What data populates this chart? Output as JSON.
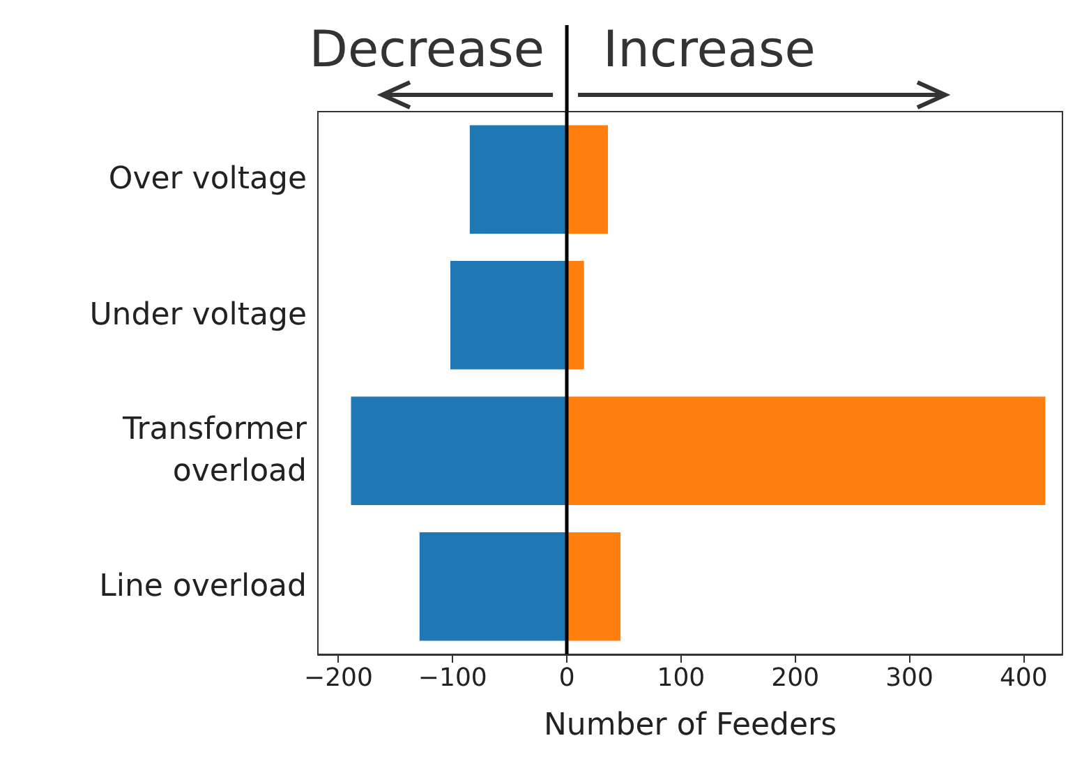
{
  "chart_data": {
    "type": "bar",
    "orientation": "horizontal",
    "stacked": true,
    "xlabel": "Number of Feeders",
    "categories": [
      "Over voltage",
      "Under voltage",
      "Transformer\noverload",
      "Line overload"
    ],
    "series": [
      {
        "color": "#1f77b4",
        "values": [
          -85,
          -102,
          -189,
          -129
        ]
      },
      {
        "color": "#ff7f0e",
        "values": [
          36,
          15,
          419,
          47
        ]
      }
    ],
    "xlim": [
      -218,
      434
    ],
    "xticks": [
      -200,
      -100,
      0,
      100,
      200,
      300,
      400
    ],
    "grid": false,
    "ref_lines": [
      {
        "axis": "x",
        "value": 0,
        "color": "#000000"
      }
    ],
    "annotations": [
      "Decrease",
      "Increase"
    ]
  }
}
